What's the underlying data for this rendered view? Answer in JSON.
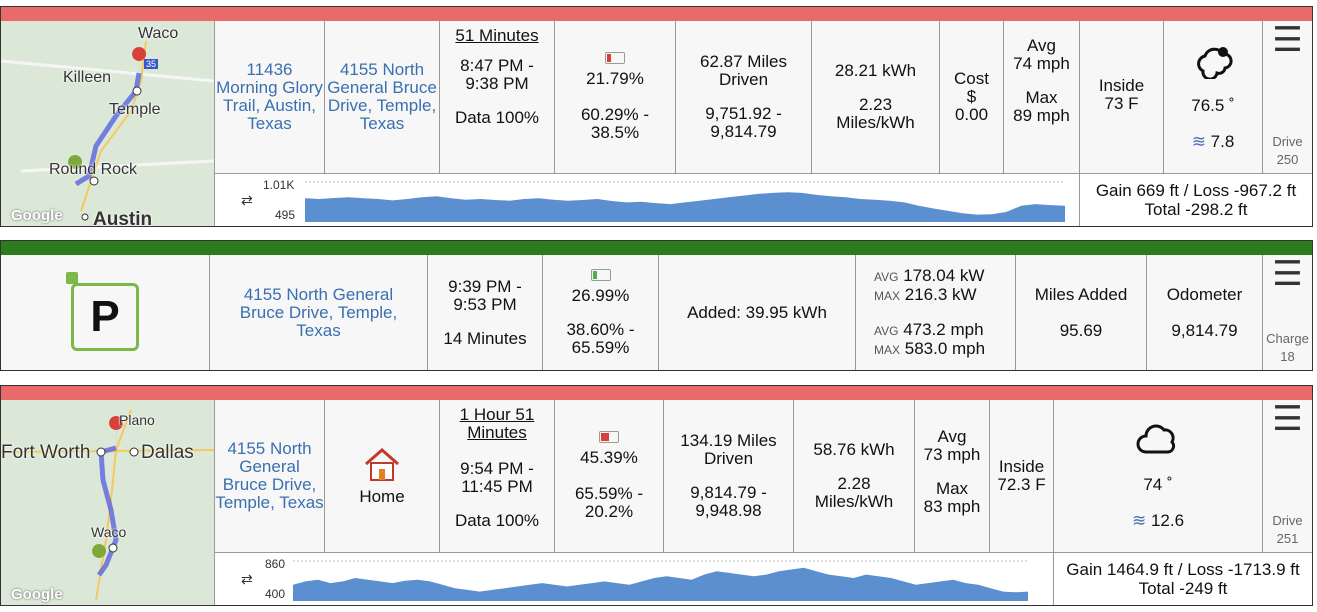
{
  "drive1": {
    "address_from": "11436 Morning Glory Trail, Austin, Texas",
    "address_to": "4155 North General Bruce Drive, Temple, Texas",
    "duration": "51 Minutes",
    "time_range": "8:47 PM - 9:38 PM",
    "data_pct": "Data 100%",
    "battery_used": "21.79%",
    "battery_range": "60.29% - 38.5%",
    "miles": "62.87 Miles Driven",
    "odometer": "9,751.92 - 9,814.79",
    "energy": "28.21 kWh",
    "efficiency": "2.23 Miles/kWh",
    "cost_label": "Cost",
    "cost_currency": "$",
    "cost_value": "0.00",
    "avg_label": "Avg",
    "avg_speed": "74 mph",
    "max_label": "Max",
    "max_speed": "89 mph",
    "inside_label": "Inside",
    "inside_temp": "73 F",
    "outside_temp": "76.5 ˚",
    "wind": "7.8",
    "drive_label": "Drive",
    "drive_num": "250",
    "elev_high": "1.01K",
    "elev_low": "495",
    "gain_loss": "Gain 669 ft / Loss -967.2 ft",
    "total": "Total -298.2 ft",
    "map_labels": [
      "Waco",
      "Killeen",
      "Temple",
      "Round Rock",
      "Austin"
    ],
    "google": "Google",
    "highway": "35",
    "elev_profile": [
      0.52,
      0.5,
      0.53,
      0.55,
      0.52,
      0.5,
      0.46,
      0.5,
      0.55,
      0.58,
      0.52,
      0.48,
      0.5,
      0.47,
      0.45,
      0.5,
      0.52,
      0.48,
      0.45,
      0.47,
      0.5,
      0.44,
      0.4,
      0.42,
      0.38,
      0.35,
      0.4,
      0.45,
      0.5,
      0.55,
      0.6,
      0.65,
      0.68,
      0.7,
      0.68,
      0.62,
      0.58,
      0.55,
      0.5,
      0.48,
      0.45,
      0.4,
      0.3,
      0.22,
      0.15,
      0.08,
      0.04,
      0.05,
      0.12,
      0.3,
      0.35,
      0.32,
      0.3
    ]
  },
  "charge": {
    "location": "4155 North General Bruce Drive, Temple, Texas",
    "time_range": "9:39 PM - 9:53 PM",
    "duration": "14 Minutes",
    "battery_added": "26.99%",
    "battery_range": "38.60% - 65.59%",
    "added": "Added: 39.95 kWh",
    "avg_label": "AVG",
    "max_label": "MAX",
    "avg_power": "178.04 kW",
    "max_power": "216.3 kW",
    "avg_rate": "473.2 mph",
    "max_rate": "583.0 mph",
    "miles_added_label": "Miles Added",
    "miles_added": "95.69",
    "odometer_label": "Odometer",
    "odometer": "9,814.79",
    "charge_label": "Charge",
    "charge_num": "18",
    "p_glyph": "P"
  },
  "drive2": {
    "address_from": "4155 North General Bruce Drive, Temple, Texas",
    "address_to": "Home",
    "duration": "1 Hour 51 Minutes",
    "time_range": "9:54 PM - 11:45 PM",
    "data_pct": "Data 100%",
    "battery_used": "45.39%",
    "battery_range": "65.59% - 20.2%",
    "miles": "134.19 Miles Driven",
    "odometer": "9,814.79 - 9,948.98",
    "energy": "58.76 kWh",
    "efficiency": "2.28 Miles/kWh",
    "avg_label": "Avg",
    "avg_speed": "73 mph",
    "max_label": "Max",
    "max_speed": "83 mph",
    "inside_label": "Inside",
    "inside_temp": "72.3 F",
    "outside_temp": "74 ˚",
    "wind": "12.6",
    "drive_label": "Drive",
    "drive_num": "251",
    "elev_high": "860",
    "elev_low": "400",
    "gain_loss": "Gain 1464.9 ft / Loss -1713.9 ft",
    "total": "Total -249 ft",
    "map_labels": [
      "Plano",
      "Fort Worth",
      "Dallas",
      "Waco"
    ],
    "google": "Google",
    "elev_profile": [
      0.3,
      0.4,
      0.45,
      0.35,
      0.4,
      0.5,
      0.45,
      0.4,
      0.35,
      0.42,
      0.45,
      0.4,
      0.3,
      0.2,
      0.15,
      0.1,
      0.15,
      0.2,
      0.25,
      0.3,
      0.35,
      0.3,
      0.25,
      0.3,
      0.35,
      0.4,
      0.35,
      0.3,
      0.4,
      0.5,
      0.55,
      0.5,
      0.45,
      0.6,
      0.7,
      0.65,
      0.6,
      0.55,
      0.6,
      0.7,
      0.75,
      0.8,
      0.7,
      0.6,
      0.55,
      0.5,
      0.6,
      0.55,
      0.5,
      0.4,
      0.3,
      0.35,
      0.4,
      0.45,
      0.35,
      0.3,
      0.2,
      0.1,
      0.08,
      0.1
    ]
  },
  "colors": {
    "drive_bar": "#e86a6a",
    "charge_bar": "#2e7a1f",
    "link": "#3a6fb0",
    "elev_fill": "#5b8fd0"
  }
}
